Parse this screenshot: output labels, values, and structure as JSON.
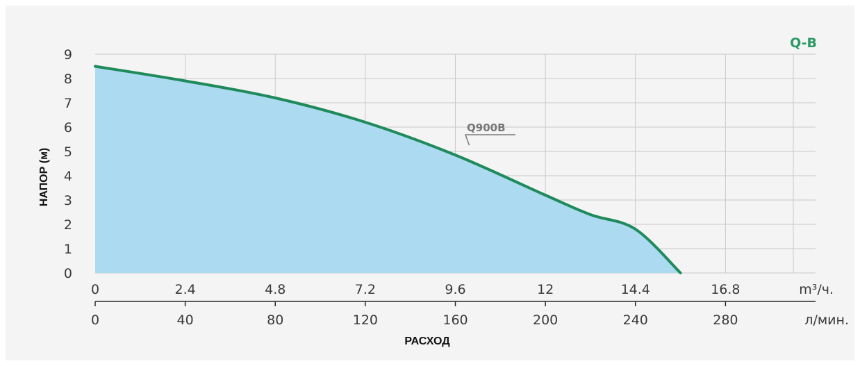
{
  "chart_data": {
    "type": "area",
    "badge": "Q-B",
    "ylabel": "НАПОР (м)",
    "xlabel": "РАСХОД",
    "ylim": [
      0,
      9
    ],
    "yticks": [
      "0",
      "1",
      "2",
      "3",
      "4",
      "5",
      "6",
      "7",
      "8",
      "9"
    ],
    "xlim": [
      0,
      19.2
    ],
    "x_primary": {
      "unit": "m³/ч.",
      "ticks": [
        0,
        2.4,
        4.8,
        7.2,
        9.6,
        12,
        14.4,
        16.8
      ],
      "tick_labels": [
        "0",
        "2.4",
        "4.8",
        "7.2",
        "9.6",
        "12",
        "14.4",
        "16.8"
      ]
    },
    "x_secondary": {
      "unit": "л/мин.",
      "ticks": [
        0,
        40,
        80,
        120,
        160,
        200,
        240,
        280
      ],
      "tick_labels": [
        "0",
        "40",
        "80",
        "120",
        "160",
        "200",
        "240",
        "280"
      ]
    },
    "grid": true,
    "series": [
      {
        "name": "Q900B",
        "x": [
          0,
          2.4,
          4.8,
          7.2,
          9.6,
          12,
          13.2,
          14.4,
          15.6
        ],
        "y": [
          8.5,
          7.9,
          7.2,
          6.2,
          4.85,
          3.2,
          2.4,
          1.8,
          0
        ],
        "line_color": "#1f8a5b",
        "fill_color": "#acdaf1"
      }
    ],
    "colors": {
      "badge": "#2a9a63",
      "grid": "#c9c9c9"
    }
  }
}
